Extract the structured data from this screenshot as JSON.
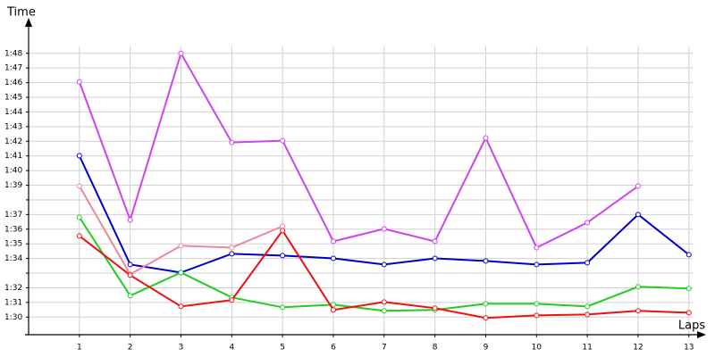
{
  "chart_data": {
    "type": "line",
    "y_label": "Time",
    "x_label": "Laps",
    "x": [
      1,
      2,
      3,
      4,
      5,
      6,
      7,
      8,
      9,
      10,
      11,
      12,
      13
    ],
    "xlim": [
      0,
      13.25
    ],
    "xticks": [
      1,
      2,
      3,
      4,
      5,
      6,
      7,
      8,
      9,
      10,
      11,
      12,
      13
    ],
    "ylim": [
      88.8,
      110.3
    ],
    "yticks": [
      {
        "value": 90,
        "label": "1:30"
      },
      {
        "value": 91,
        "label": "1:31"
      },
      {
        "value": 92,
        "label": "1:32"
      },
      {
        "value": 93,
        "label": null
      },
      {
        "value": 94,
        "label": "1:34"
      },
      {
        "value": 95,
        "label": "1:35"
      },
      {
        "value": 96,
        "label": "1:36"
      },
      {
        "value": 97,
        "label": "1:37"
      },
      {
        "value": 98,
        "label": null
      },
      {
        "value": 99,
        "label": "1:39"
      },
      {
        "value": 100,
        "label": "1:40"
      },
      {
        "value": 101,
        "label": "1:41"
      },
      {
        "value": 102,
        "label": "1:42"
      },
      {
        "value": 103,
        "label": "1:43"
      },
      {
        "value": 104,
        "label": "1:44"
      },
      {
        "value": 105,
        "label": "1:45"
      },
      {
        "value": 106,
        "label": "1:46"
      },
      {
        "value": 107,
        "label": "1:47"
      },
      {
        "value": 108,
        "label": "1:48"
      }
    ],
    "grid": true,
    "series": [
      {
        "color": "#cc44ee",
        "values": [
          106.06,
          96.63,
          108.0,
          101.92,
          102.04,
          95.17,
          96.02,
          95.17,
          102.23,
          94.74,
          96.45,
          98.94,
          null
        ]
      },
      {
        "color": "#0000cc",
        "values": [
          101.01,
          93.59,
          93.04,
          94.32,
          94.2,
          94.01,
          93.59,
          94.01,
          93.83,
          93.59,
          93.71,
          97.0,
          94.26
        ]
      },
      {
        "color": "#ee8899",
        "values": [
          98.94,
          92.92,
          94.87,
          94.74,
          96.2,
          null,
          null,
          null,
          null,
          null,
          null,
          null,
          null
        ]
      },
      {
        "color": "#22cc22",
        "values": [
          96.81,
          91.46,
          93.04,
          91.34,
          90.67,
          90.85,
          90.43,
          90.49,
          90.91,
          90.91,
          90.73,
          92.07,
          91.95
        ]
      },
      {
        "color": "#ee1111",
        "values": [
          95.54,
          92.86,
          90.73,
          91.16,
          95.9,
          90.49,
          91.03,
          90.61,
          89.94,
          90.12,
          90.18,
          90.43,
          90.3
        ]
      }
    ]
  }
}
